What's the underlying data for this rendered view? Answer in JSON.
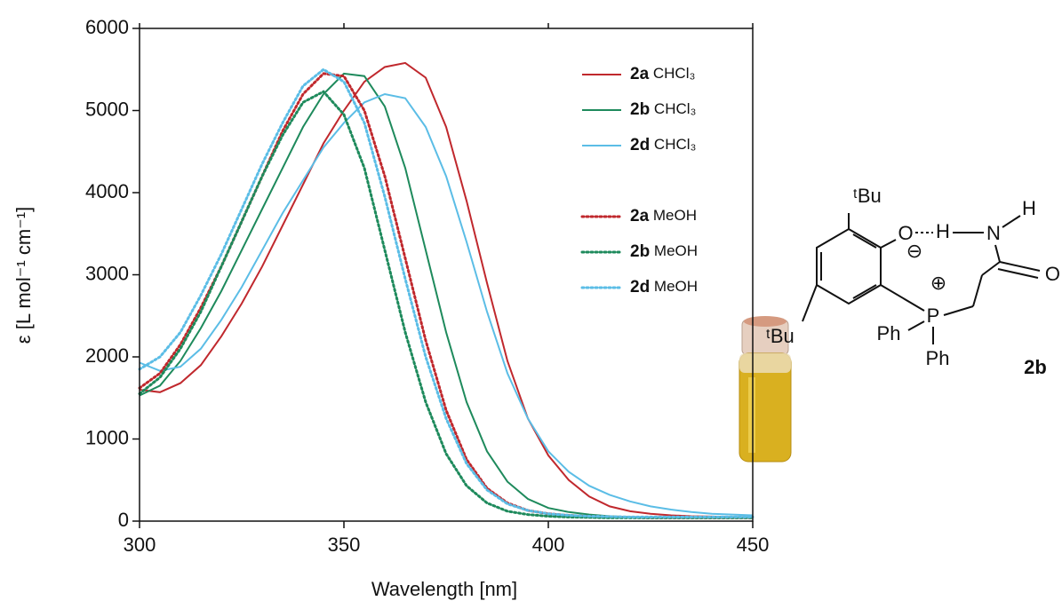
{
  "chart_data": {
    "type": "line",
    "xlabel": "Wavelength [nm]",
    "ylabel": "ε [L mol⁻¹ cm⁻¹]",
    "x": [
      300,
      305,
      310,
      315,
      320,
      325,
      330,
      335,
      340,
      345,
      350,
      355,
      360,
      365,
      370,
      375,
      380,
      385,
      390,
      395,
      400,
      405,
      410,
      415,
      420,
      425,
      430,
      435,
      440,
      445,
      450
    ],
    "series": [
      {
        "name": "2a CHCl₃",
        "color": "#c0282d",
        "line_style": "solid",
        "values": [
          1600,
          1570,
          1680,
          1900,
          2250,
          2650,
          3100,
          3600,
          4100,
          4600,
          5000,
          5350,
          5530,
          5580,
          5400,
          4800,
          3900,
          2900,
          1950,
          1250,
          800,
          500,
          300,
          180,
          120,
          90,
          70,
          60,
          55,
          50,
          50
        ]
      },
      {
        "name": "2b CHCl₃",
        "color": "#1e8a5c",
        "line_style": "solid",
        "values": [
          1530,
          1650,
          1950,
          2350,
          2800,
          3300,
          3800,
          4300,
          4800,
          5200,
          5450,
          5420,
          5050,
          4300,
          3300,
          2300,
          1450,
          850,
          480,
          270,
          160,
          110,
          80,
          60,
          50,
          45,
          40,
          40,
          40,
          40,
          40
        ]
      },
      {
        "name": "2d CHCl₃",
        "color": "#5bbde6",
        "line_style": "solid",
        "values": [
          1930,
          1830,
          1880,
          2100,
          2450,
          2850,
          3300,
          3750,
          4150,
          4550,
          4850,
          5100,
          5200,
          5150,
          4800,
          4200,
          3400,
          2550,
          1800,
          1250,
          850,
          600,
          430,
          320,
          240,
          180,
          140,
          110,
          90,
          80,
          70
        ]
      },
      {
        "name": "2a MeOH",
        "color": "#c0282d",
        "line_style": "dotted",
        "values": [
          1620,
          1800,
          2150,
          2600,
          3100,
          3650,
          4200,
          4750,
          5200,
          5450,
          5420,
          5000,
          4200,
          3200,
          2200,
          1350,
          750,
          400,
          220,
          130,
          90,
          70,
          55,
          50,
          45,
          40,
          40,
          40,
          40,
          40,
          40
        ]
      },
      {
        "name": "2b MeOH",
        "color": "#1e8a5c",
        "line_style": "dotted",
        "values": [
          1550,
          1750,
          2100,
          2550,
          3100,
          3650,
          4200,
          4700,
          5100,
          5230,
          4950,
          4300,
          3300,
          2300,
          1450,
          820,
          430,
          220,
          120,
          80,
          60,
          50,
          45,
          40,
          40,
          40,
          40,
          40,
          40,
          40,
          40
        ]
      },
      {
        "name": "2d MeOH",
        "color": "#5bbde6",
        "line_style": "dotted",
        "values": [
          1850,
          2000,
          2300,
          2750,
          3250,
          3800,
          4350,
          4850,
          5300,
          5500,
          5350,
          4850,
          3950,
          2950,
          2000,
          1250,
          700,
          380,
          210,
          130,
          90,
          70,
          60,
          55,
          50,
          50,
          50,
          50,
          50,
          50,
          50
        ]
      }
    ],
    "xlim": [
      300,
      450
    ],
    "xticks": [
      300,
      350,
      400,
      450
    ],
    "ylim": [
      0,
      6000
    ],
    "yticks": [
      0,
      1000,
      2000,
      3000,
      4000,
      5000,
      6000
    ],
    "legend": "upper right"
  },
  "structure": {
    "labels": {
      "tbu_top": "ᵗBu",
      "tbu_left": "ᵗBu",
      "oxygen": "O",
      "minus": "⊖",
      "h_bridge": "H",
      "nitrogen": "N",
      "h_top": "H",
      "carbonyl_o": "O",
      "phosphorus": "P",
      "plus": "⊕",
      "ph_left": "Ph",
      "ph_bottom": "Ph",
      "compound": "2b"
    }
  }
}
